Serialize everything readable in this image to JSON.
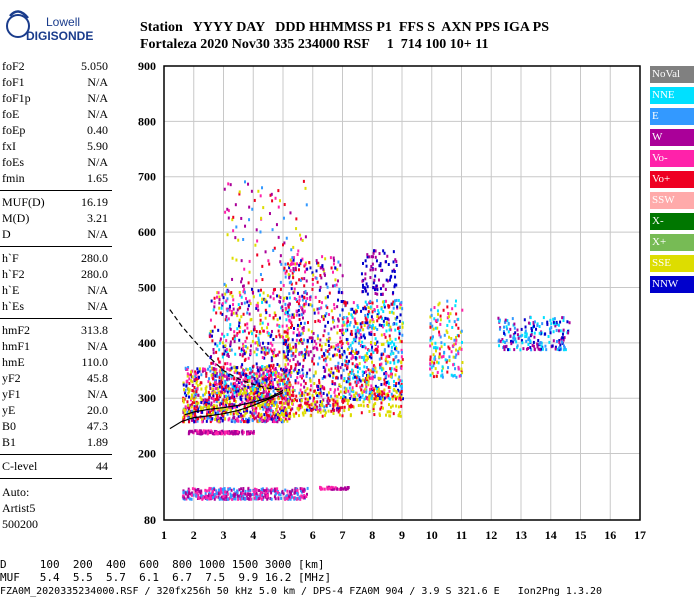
{
  "logo": {
    "line1": "Lowell",
    "line2": "DIGISONDE"
  },
  "header": {
    "line1": "Station   YYYY DAY   DDD HHMMSS P1  FFS S  AXN PPS IGA PS",
    "line2": "Fortaleza 2020 Nov30 335 234000 RSF     1  714 100 10+ 11"
  },
  "params_group1": [
    {
      "name": "foF2",
      "value": "5.050"
    },
    {
      "name": "foF1",
      "value": "N/A"
    },
    {
      "name": "foF1p",
      "value": "N/A"
    },
    {
      "name": "foE",
      "value": "N/A"
    },
    {
      "name": "foEp",
      "value": "0.40"
    },
    {
      "name": "fxI",
      "value": "5.90"
    },
    {
      "name": "foEs",
      "value": "N/A"
    },
    {
      "name": "fmin",
      "value": "1.65"
    }
  ],
  "params_group2": [
    {
      "name": "MUF(D)",
      "value": "16.19"
    },
    {
      "name": "M(D)",
      "value": "3.21"
    },
    {
      "name": "D",
      "value": "N/A"
    }
  ],
  "params_group3": [
    {
      "name": "h`F",
      "value": "280.0"
    },
    {
      "name": "h`F2",
      "value": "280.0"
    },
    {
      "name": "h`E",
      "value": "N/A"
    },
    {
      "name": "h`Es",
      "value": "N/A"
    }
  ],
  "params_group4": [
    {
      "name": "hmF2",
      "value": "313.8"
    },
    {
      "name": "hmF1",
      "value": "N/A"
    },
    {
      "name": "hmE",
      "value": "110.0"
    },
    {
      "name": "yF2",
      "value": "45.8"
    },
    {
      "name": "yF1",
      "value": "N/A"
    },
    {
      "name": "yE",
      "value": "20.0"
    },
    {
      "name": "B0",
      "value": "47.3"
    },
    {
      "name": "B1",
      "value": "1.89"
    }
  ],
  "clevel": {
    "name": "C-level",
    "value": "44"
  },
  "auto_text": [
    "Auto:",
    "Artist5",
    "500200"
  ],
  "legend": [
    {
      "label": "NoVal",
      "color": "#808080"
    },
    {
      "label": "NNE",
      "color": "#00e0ff"
    },
    {
      "label": "E",
      "color": "#3399ff"
    },
    {
      "label": "W",
      "color": "#aa0099"
    },
    {
      "label": "Vo-",
      "color": "#ff22aa"
    },
    {
      "label": "Vo+",
      "color": "#ee0022"
    },
    {
      "label": "SSW",
      "color": "#ffaaaa"
    },
    {
      "label": "X-",
      "color": "#007700"
    },
    {
      "label": "X+",
      "color": "#77bb55"
    },
    {
      "label": "SSE",
      "color": "#dddd00"
    },
    {
      "label": "NNW",
      "color": "#0000cc"
    }
  ],
  "bottom": {
    "line1": "D     100  200  400  600  800 1000 1500 3000 [km]",
    "line2": "MUF   5.4  5.5  5.7  6.1  6.7  7.5  9.9 16.2 [MHz]",
    "line3": "FZA0M_2020335234000.RSF / 320fx256h 50 kHz 5.0 km / DPS-4 FZA0M 904 / 3.9 S 321.6 E   Ion2Png 1.3.20"
  },
  "chart_data": {
    "type": "scatter",
    "xlim": [
      1,
      17
    ],
    "ylim": [
      80,
      900
    ],
    "x_ticks": [
      1,
      2,
      3,
      4,
      5,
      6,
      7,
      8,
      9,
      10,
      11,
      12,
      13,
      14,
      15,
      16,
      17
    ],
    "y_ticks": [
      80,
      200,
      300,
      400,
      500,
      600,
      700,
      800,
      900
    ],
    "grid": true,
    "traces": [
      {
        "name": "profile",
        "style": "dashed",
        "points": [
          [
            1.2,
            460
          ],
          [
            1.6,
            430
          ],
          [
            2.0,
            405
          ],
          [
            2.5,
            375
          ],
          [
            3.0,
            350
          ],
          [
            3.5,
            335
          ],
          [
            4.0,
            325
          ],
          [
            4.5,
            318
          ],
          [
            5.0,
            314
          ]
        ]
      },
      {
        "name": "trace",
        "style": "solid",
        "points": [
          [
            1.7,
            270
          ],
          [
            2.0,
            275
          ],
          [
            2.5,
            280
          ],
          [
            3.0,
            283
          ],
          [
            3.5,
            287
          ],
          [
            4.0,
            293
          ],
          [
            4.5,
            300
          ],
          [
            4.8,
            308
          ],
          [
            5.0,
            314
          ]
        ]
      },
      {
        "name": "trace2",
        "style": "solid",
        "points": [
          [
            1.2,
            245
          ],
          [
            1.6,
            258
          ],
          [
            2.0,
            265
          ],
          [
            2.5,
            268
          ],
          [
            3.0,
            272
          ],
          [
            3.5,
            278
          ],
          [
            4.0,
            287
          ],
          [
            4.5,
            298
          ],
          [
            5.0,
            310
          ]
        ]
      }
    ],
    "clusters": [
      {
        "x": [
          1.6,
          5.2
        ],
        "y": [
          260,
          360
        ],
        "n": 900,
        "colors": [
          4,
          5,
          9,
          3,
          2,
          10
        ]
      },
      {
        "x": [
          2.5,
          5.2
        ],
        "y": [
          300,
          500
        ],
        "n": 500,
        "colors": [
          4,
          5,
          3,
          9,
          1,
          10
        ]
      },
      {
        "x": [
          3.0,
          5.8
        ],
        "y": [
          380,
          700
        ],
        "n": 200,
        "colors": [
          4,
          5,
          3,
          9,
          2
        ]
      },
      {
        "x": [
          5.0,
          7.0
        ],
        "y": [
          280,
          560
        ],
        "n": 600,
        "colors": [
          4,
          5,
          9,
          2,
          3,
          10
        ]
      },
      {
        "x": [
          7.0,
          9.0
        ],
        "y": [
          300,
          480
        ],
        "n": 600,
        "colors": [
          4,
          5,
          9,
          2,
          1,
          10
        ]
      },
      {
        "x": [
          7.6,
          8.8
        ],
        "y": [
          490,
          570
        ],
        "n": 90,
        "colors": [
          10,
          3
        ]
      },
      {
        "x": [
          9.9,
          11.0
        ],
        "y": [
          340,
          480
        ],
        "n": 150,
        "colors": [
          4,
          5,
          1,
          2,
          9
        ]
      },
      {
        "x": [
          12.2,
          14.6
        ],
        "y": [
          390,
          450
        ],
        "n": 200,
        "colors": [
          2,
          10,
          1,
          3
        ]
      },
      {
        "x": [
          1.8,
          4.0
        ],
        "y": [
          238,
          244
        ],
        "n": 120,
        "colors": [
          3,
          4
        ]
      },
      {
        "x": [
          1.6,
          5.8
        ],
        "y": [
          120,
          140
        ],
        "n": 400,
        "colors": [
          3,
          4,
          2
        ]
      },
      {
        "x": [
          6.2,
          7.2
        ],
        "y": [
          138,
          142
        ],
        "n": 40,
        "colors": [
          3,
          4
        ]
      },
      {
        "x": [
          1.6,
          9.0
        ],
        "y": [
          270,
          320
        ],
        "n": 300,
        "colors": [
          9,
          9,
          5
        ]
      }
    ]
  }
}
